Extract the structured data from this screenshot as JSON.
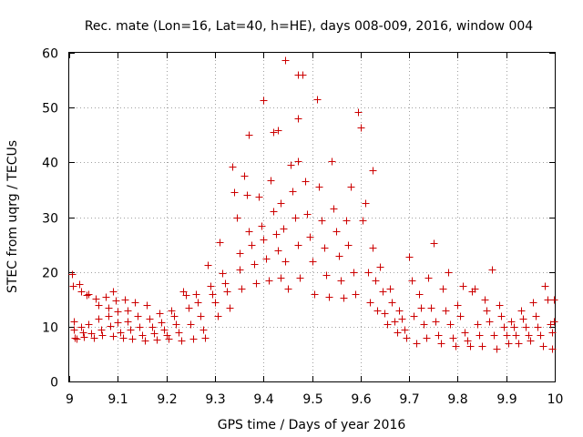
{
  "chart_data": {
    "type": "scatter",
    "title": "Rec. mate (Lon=16, Lat=40, h=HE), days 008-009, 2016, window 004",
    "xlabel": "GPS time / Days of year 2016",
    "ylabel": "STEC from uqrg / TECUs",
    "xlim": [
      9,
      10
    ],
    "ylim": [
      0,
      60
    ],
    "xticks": [
      "9",
      "9.1",
      "9.2",
      "9.3",
      "9.4",
      "9.5",
      "9.6",
      "9.7",
      "9.8",
      "9.9",
      "10"
    ],
    "yticks": [
      "0",
      "10",
      "20",
      "30",
      "40",
      "50",
      "60"
    ],
    "grid": true,
    "marker": "+",
    "color": "#cc0000",
    "series": [
      {
        "name": "STEC",
        "points": [
          [
            9.005,
            19.6
          ],
          [
            9.008,
            17.5
          ],
          [
            9.01,
            11.0
          ],
          [
            9.01,
            9.5
          ],
          [
            9.012,
            8.0
          ],
          [
            9.015,
            7.8
          ],
          [
            9.02,
            17.8
          ],
          [
            9.025,
            16.5
          ],
          [
            9.025,
            10.0
          ],
          [
            9.028,
            9.0
          ],
          [
            9.03,
            8.2
          ],
          [
            9.035,
            15.8
          ],
          [
            9.04,
            16.0
          ],
          [
            9.04,
            10.5
          ],
          [
            9.045,
            8.8
          ],
          [
            9.05,
            8.0
          ],
          [
            9.055,
            15.2
          ],
          [
            9.06,
            14.0
          ],
          [
            9.06,
            11.5
          ],
          [
            9.065,
            9.5
          ],
          [
            9.068,
            8.5
          ],
          [
            9.075,
            15.5
          ],
          [
            9.08,
            13.5
          ],
          [
            9.08,
            12.0
          ],
          [
            9.085,
            10.2
          ],
          [
            9.09,
            8.3
          ],
          [
            9.09,
            16.5
          ],
          [
            9.095,
            14.8
          ],
          [
            9.1,
            12.8
          ],
          [
            9.1,
            10.8
          ],
          [
            9.105,
            9.0
          ],
          [
            9.11,
            8.0
          ],
          [
            9.115,
            15.0
          ],
          [
            9.12,
            13.0
          ],
          [
            9.12,
            11.0
          ],
          [
            9.125,
            9.5
          ],
          [
            9.13,
            7.8
          ],
          [
            9.135,
            14.5
          ],
          [
            9.14,
            12.0
          ],
          [
            9.145,
            10.0
          ],
          [
            9.15,
            8.5
          ],
          [
            9.155,
            7.5
          ],
          [
            9.16,
            14.0
          ],
          [
            9.165,
            11.5
          ],
          [
            9.17,
            10.0
          ],
          [
            9.175,
            8.8
          ],
          [
            9.18,
            7.6
          ],
          [
            9.185,
            12.5
          ],
          [
            9.19,
            10.8
          ],
          [
            9.195,
            9.5
          ],
          [
            9.2,
            8.5
          ],
          [
            9.205,
            7.8
          ],
          [
            9.21,
            13.0
          ],
          [
            9.215,
            12.0
          ],
          [
            9.22,
            10.5
          ],
          [
            9.225,
            9.0
          ],
          [
            9.23,
            7.5
          ],
          [
            9.235,
            16.5
          ],
          [
            9.24,
            15.8
          ],
          [
            9.245,
            13.5
          ],
          [
            9.25,
            10.5
          ],
          [
            9.255,
            7.8
          ],
          [
            9.26,
            16.0
          ],
          [
            9.265,
            14.5
          ],
          [
            9.27,
            12.0
          ],
          [
            9.275,
            9.5
          ],
          [
            9.28,
            8.0
          ],
          [
            9.285,
            21.2
          ],
          [
            9.29,
            17.5
          ],
          [
            9.295,
            16.0
          ],
          [
            9.3,
            14.5
          ],
          [
            9.305,
            12.0
          ],
          [
            9.31,
            25.5
          ],
          [
            9.315,
            19.8
          ],
          [
            9.32,
            18.0
          ],
          [
            9.325,
            16.5
          ],
          [
            9.33,
            13.5
          ],
          [
            9.335,
            39.2
          ],
          [
            9.34,
            34.5
          ],
          [
            9.345,
            30.0
          ],
          [
            9.35,
            23.5
          ],
          [
            9.35,
            20.5
          ],
          [
            9.355,
            17.0
          ],
          [
            9.36,
            37.5
          ],
          [
            9.365,
            34.0
          ],
          [
            9.37,
            27.5
          ],
          [
            9.375,
            25.0
          ],
          [
            9.38,
            21.5
          ],
          [
            9.385,
            18.0
          ],
          [
            9.37,
            45.0
          ],
          [
            9.39,
            33.8
          ],
          [
            9.395,
            28.5
          ],
          [
            9.4,
            26.0
          ],
          [
            9.405,
            22.5
          ],
          [
            9.41,
            18.5
          ],
          [
            9.4,
            51.3
          ],
          [
            9.415,
            36.8
          ],
          [
            9.42,
            31.0
          ],
          [
            9.425,
            27.0
          ],
          [
            9.43,
            24.0
          ],
          [
            9.435,
            19.0
          ],
          [
            9.42,
            45.5
          ],
          [
            9.43,
            45.8
          ],
          [
            9.435,
            32.5
          ],
          [
            9.44,
            28.0
          ],
          [
            9.445,
            22.0
          ],
          [
            9.45,
            17.0
          ],
          [
            9.445,
            58.6
          ],
          [
            9.455,
            39.5
          ],
          [
            9.46,
            34.8
          ],
          [
            9.465,
            30.0
          ],
          [
            9.47,
            25.0
          ],
          [
            9.475,
            19.0
          ],
          [
            9.47,
            56.0
          ],
          [
            9.48,
            56.0
          ],
          [
            9.47,
            48.0
          ],
          [
            9.47,
            40.2
          ],
          [
            9.485,
            36.5
          ],
          [
            9.49,
            30.5
          ],
          [
            9.495,
            26.5
          ],
          [
            9.5,
            22.0
          ],
          [
            9.505,
            16.0
          ],
          [
            9.51,
            51.5
          ],
          [
            9.515,
            35.5
          ],
          [
            9.52,
            29.5
          ],
          [
            9.525,
            24.5
          ],
          [
            9.53,
            19.5
          ],
          [
            9.535,
            15.5
          ],
          [
            9.54,
            40.2
          ],
          [
            9.545,
            31.5
          ],
          [
            9.55,
            27.5
          ],
          [
            9.555,
            23.0
          ],
          [
            9.56,
            18.5
          ],
          [
            9.565,
            15.3
          ],
          [
            9.57,
            29.5
          ],
          [
            9.575,
            25.0
          ],
          [
            9.58,
            35.5
          ],
          [
            9.585,
            20.0
          ],
          [
            9.59,
            16.0
          ],
          [
            9.595,
            49.2
          ],
          [
            9.6,
            46.3
          ],
          [
            9.605,
            29.5
          ],
          [
            9.61,
            32.5
          ],
          [
            9.615,
            20.0
          ],
          [
            9.62,
            14.5
          ],
          [
            9.625,
            38.5
          ],
          [
            9.625,
            24.5
          ],
          [
            9.63,
            18.5
          ],
          [
            9.635,
            13.0
          ],
          [
            9.64,
            21.0
          ],
          [
            9.645,
            16.5
          ],
          [
            9.65,
            12.5
          ],
          [
            9.655,
            10.5
          ],
          [
            9.66,
            17.0
          ],
          [
            9.665,
            14.5
          ],
          [
            9.67,
            11.0
          ],
          [
            9.675,
            9.0
          ],
          [
            9.68,
            13.0
          ],
          [
            9.685,
            11.5
          ],
          [
            9.69,
            9.5
          ],
          [
            9.695,
            8.0
          ],
          [
            9.7,
            22.7
          ],
          [
            9.705,
            18.5
          ],
          [
            9.71,
            12.0
          ],
          [
            9.715,
            7.0
          ],
          [
            9.72,
            16.0
          ],
          [
            9.725,
            13.5
          ],
          [
            9.73,
            10.5
          ],
          [
            9.735,
            8.0
          ],
          [
            9.74,
            19.0
          ],
          [
            9.745,
            13.5
          ],
          [
            9.75,
            25.3
          ],
          [
            9.755,
            11.0
          ],
          [
            9.76,
            8.5
          ],
          [
            9.765,
            7.0
          ],
          [
            9.77,
            17.0
          ],
          [
            9.775,
            13.0
          ],
          [
            9.78,
            20.0
          ],
          [
            9.785,
            10.5
          ],
          [
            9.79,
            8.0
          ],
          [
            9.795,
            6.5
          ],
          [
            9.8,
            14.0
          ],
          [
            9.805,
            12.0
          ],
          [
            9.81,
            17.5
          ],
          [
            9.815,
            9.0
          ],
          [
            9.82,
            7.5
          ],
          [
            9.825,
            6.5
          ],
          [
            9.83,
            16.5
          ],
          [
            9.835,
            17.0
          ],
          [
            9.84,
            10.5
          ],
          [
            9.845,
            8.5
          ],
          [
            9.85,
            6.5
          ],
          [
            9.855,
            15.0
          ],
          [
            9.86,
            13.0
          ],
          [
            9.865,
            11.0
          ],
          [
            9.87,
            20.5
          ],
          [
            9.875,
            8.5
          ],
          [
            9.88,
            6.0
          ],
          [
            9.885,
            14.0
          ],
          [
            9.89,
            12.0
          ],
          [
            9.895,
            10.0
          ],
          [
            9.9,
            8.5
          ],
          [
            9.905,
            7.0
          ],
          [
            9.91,
            11.0
          ],
          [
            9.915,
            10.0
          ],
          [
            9.92,
            8.5
          ],
          [
            9.925,
            7.0
          ],
          [
            9.93,
            13.0
          ],
          [
            9.935,
            11.5
          ],
          [
            9.94,
            10.0
          ],
          [
            9.945,
            8.5
          ],
          [
            9.95,
            7.5
          ],
          [
            9.955,
            14.5
          ],
          [
            9.96,
            12.0
          ],
          [
            9.965,
            10.0
          ],
          [
            9.97,
            8.5
          ],
          [
            9.975,
            6.5
          ],
          [
            9.98,
            17.5
          ],
          [
            9.985,
            15.0
          ],
          [
            9.99,
            10.5
          ],
          [
            9.995,
            9.0
          ],
          [
            9.995,
            6.0
          ],
          [
            9.998,
            15.0
          ],
          [
            9.998,
            11.0
          ]
        ]
      }
    ]
  }
}
